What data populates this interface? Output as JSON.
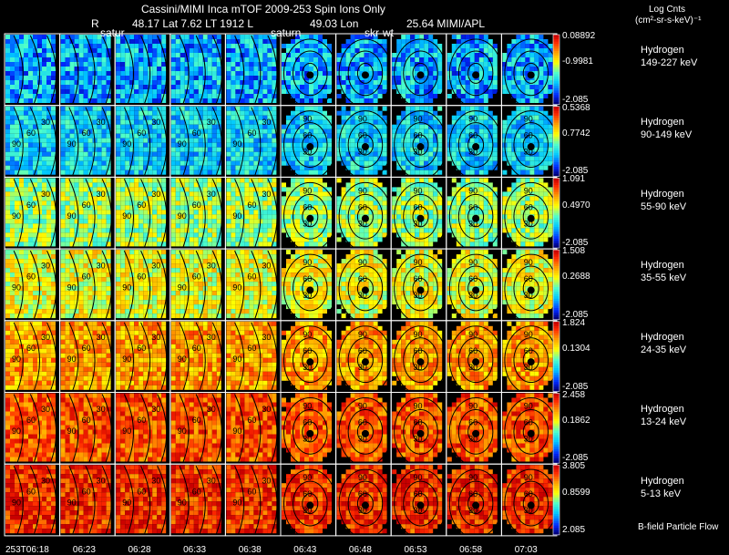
{
  "header": {
    "title": "Cassini/MIMI Inca mTOF  2009-253   Spin   Ions Only",
    "info_r": "R",
    "info_main": "48.17 Lat 7.62 LT 1912 L",
    "info_lon": "49.03 Lon",
    "info_end": "25.64  MIMI/APL",
    "overlay_satur": "satur",
    "overlay_saturn": "saturn",
    "overlay_skr": "skr-wt"
  },
  "colorbar_units": {
    "line1": "Log Cnts",
    "line2": "(cm²-sr-s-keV)⁻¹"
  },
  "rows": [
    {
      "species": "Hydrogen",
      "energy": "149-227 keV",
      "max": "0.08892",
      "mid": "-0.9981",
      "min": "-2.085",
      "level": 0.12
    },
    {
      "species": "Hydrogen",
      "energy": "90-149 keV",
      "max": "0.5368",
      "mid": "0.7742",
      "min": "-2.085",
      "level": 0.33
    },
    {
      "species": "Hydrogen",
      "energy": "55-90 keV",
      "max": "1.091",
      "mid": "0.4970",
      "min": "-2.085",
      "level": 0.52
    },
    {
      "species": "Hydrogen",
      "energy": "35-55 keV",
      "max": "1.508",
      "mid": "0.2688",
      "min": "-2.085",
      "level": 0.6
    },
    {
      "species": "Hydrogen",
      "energy": "24-35 keV",
      "max": "1.824",
      "mid": "0.1304",
      "min": "-2.085",
      "level": 0.74
    },
    {
      "species": "Hydrogen",
      "energy": "13-24 keV",
      "max": "2.458",
      "mid": "0.1862",
      "min": "-2.085",
      "level": 0.85
    },
    {
      "species": "Hydrogen",
      "energy": "5-13 keV",
      "max": "3.805",
      "mid": "0.8599",
      "min": "2.085",
      "level": 0.9
    }
  ],
  "time_labels": [
    "253T06:18",
    "06:23",
    "06:28",
    "06:33",
    "06:38",
    "06:43",
    "06:48",
    "06:53",
    "06:58",
    "07:03"
  ],
  "footer_note": "B-field Particle Flow",
  "contour_labels": [
    "90",
    "60",
    "30"
  ],
  "chart_data": {
    "type": "heatmap",
    "title": "Cassini/MIMI Inca mTOF  2009-253   Spin   Ions Only",
    "xlabel": "",
    "ylabel": "",
    "columns": [
      "253T06:18",
      "06:23",
      "06:28",
      "06:33",
      "06:38",
      "06:43",
      "06:48",
      "06:53",
      "06:58",
      "07:03"
    ],
    "rows": [
      "149-227 keV",
      "90-149 keV",
      "55-90 keV",
      "35-55 keV",
      "24-35 keV",
      "13-24 keV",
      "5-13 keV"
    ],
    "colorbar_label": "Log Cnts (cm²-sr-s-keV)⁻¹",
    "contours": [
      "90",
      "60",
      "30"
    ]
  }
}
